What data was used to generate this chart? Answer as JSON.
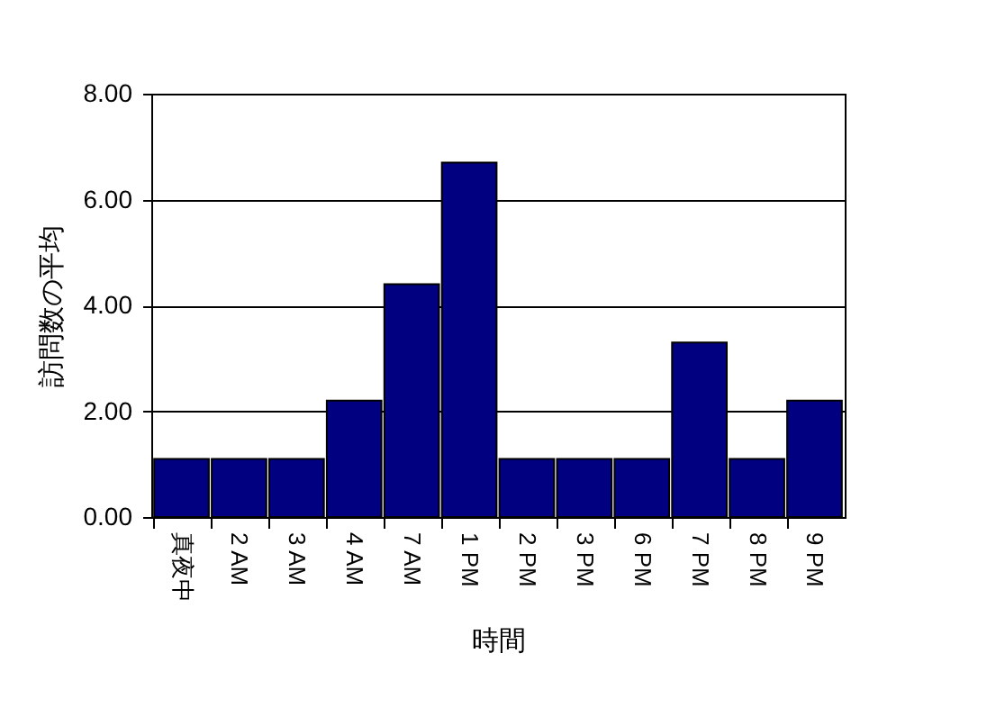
{
  "chart_data": {
    "type": "bar",
    "xlabel": "時間",
    "ylabel": "訪問数の平均",
    "categories": [
      "真夜中",
      "2 AM",
      "3 AM",
      "4 AM",
      "7 AM",
      "1 PM",
      "2 PM",
      "3 PM",
      "6 PM",
      "7 PM",
      "8 PM",
      "9 PM"
    ],
    "values": [
      1.1,
      1.1,
      1.1,
      2.2,
      4.4,
      6.7,
      1.1,
      1.1,
      1.1,
      3.3,
      1.1,
      2.2
    ],
    "color": "#000080",
    "ylim": [
      0,
      8
    ],
    "yticks": [
      {
        "value": 0,
        "label": "0.00"
      },
      {
        "value": 2,
        "label": "2.00"
      },
      {
        "value": 4,
        "label": "4.00"
      },
      {
        "value": 6,
        "label": "6.00"
      },
      {
        "value": 8,
        "label": "8.00"
      }
    ],
    "grid": "y"
  }
}
